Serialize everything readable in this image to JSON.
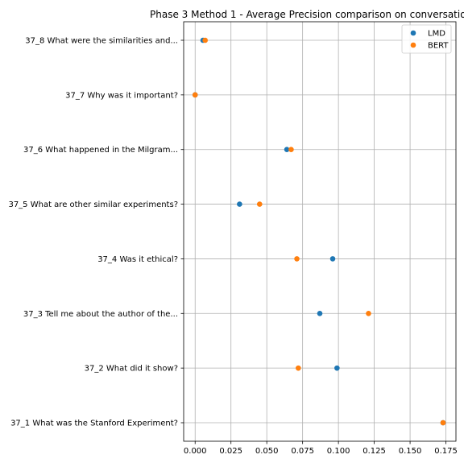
{
  "chart_data": {
    "type": "scatter",
    "title": "Phase 3 Method 1 - Average Precision comparison on conversatio",
    "xlabel": "",
    "ylabel": "",
    "xlim": [
      -0.008,
      0.182
    ],
    "xticks": [
      0.0,
      0.025,
      0.05,
      0.075,
      0.1,
      0.125,
      0.15,
      0.175
    ],
    "xtick_labels": [
      "0.000",
      "0.025",
      "0.050",
      "0.075",
      "0.100",
      "0.125",
      "0.150",
      "0.175"
    ],
    "categories": [
      "37_8 What were the similarities and...",
      "37_7 Why was it important?",
      "37_6 What happened in the Milgram...",
      "37_5 What are other similar experiments?",
      "37_4 Was it ethical?",
      "37_3 Tell me about the author of the...",
      "37_2 What did it show?",
      "37_1 What was the Stanford Experiment?"
    ],
    "series": [
      {
        "name": "LMD",
        "color": "#1f77b4",
        "values": [
          0.0055,
          0.0,
          0.064,
          0.031,
          0.096,
          0.087,
          0.099,
          0.173
        ]
      },
      {
        "name": "BERT",
        "color": "#ff7f0e",
        "values": [
          0.007,
          0.0,
          0.067,
          0.045,
          0.071,
          0.121,
          0.072,
          0.173
        ]
      }
    ],
    "grid": true,
    "legend_position": "top-right"
  }
}
